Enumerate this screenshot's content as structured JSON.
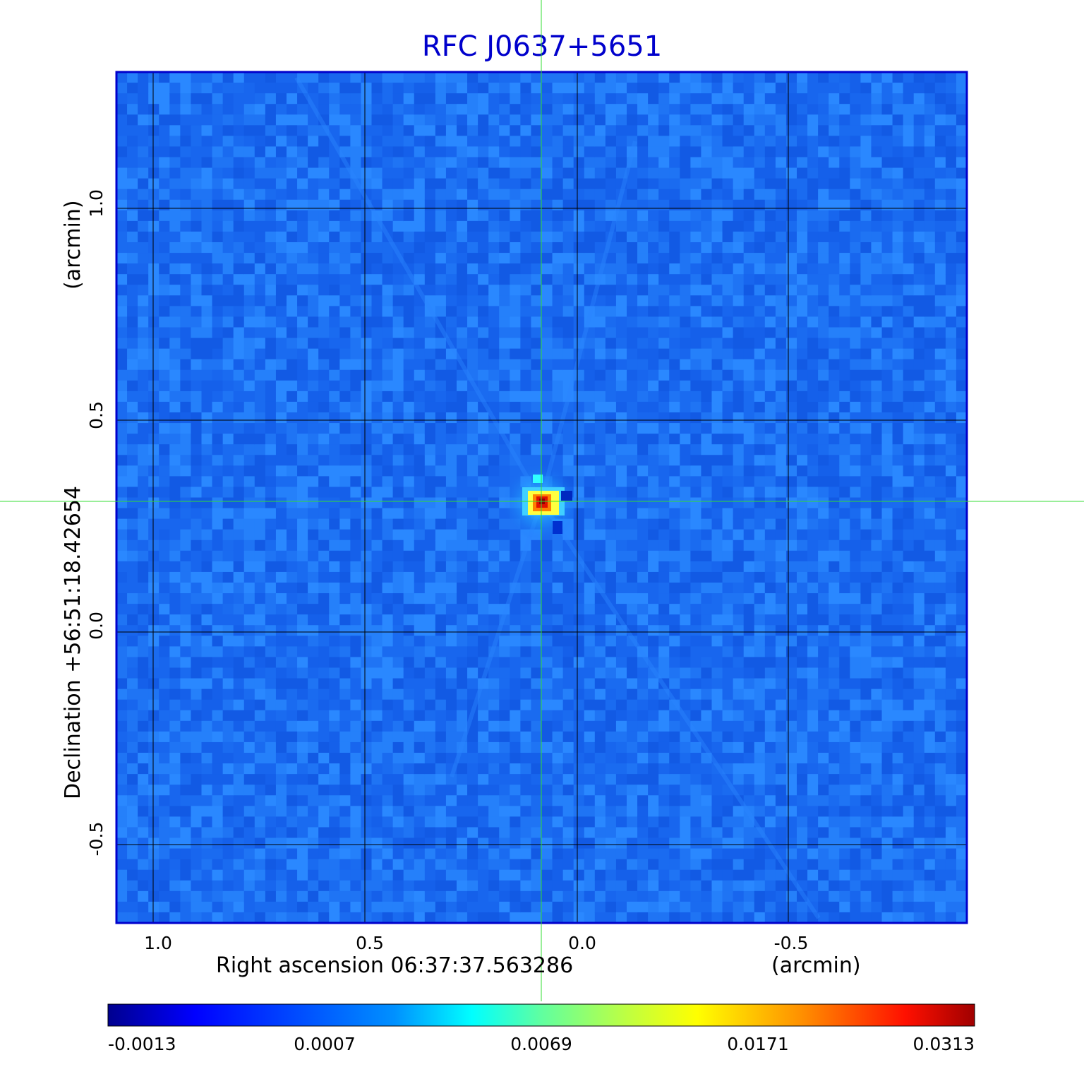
{
  "title": "RFC J0637+5651",
  "axes": {
    "x_label": "Right ascension  06:37:37.563286",
    "x_unit": "(arcmin)",
    "y_label": "Declination  +56:51:18.42654",
    "y_unit": "(arcmin)",
    "x_ticks": [
      "1.0",
      "0.5",
      "0.0",
      "-0.5"
    ],
    "y_ticks": [
      "1.0",
      "0.5",
      "0.0",
      "-0.5"
    ]
  },
  "colorbar": {
    "ticks": [
      "-0.0013",
      "0.0007",
      "0.0069",
      "0.0171",
      "0.0313"
    ]
  },
  "colors": {
    "title": "#0000cc",
    "frame": "#0000cc",
    "crosshair": "#33dd33",
    "grid": "#000000",
    "background_map": "#1a6bf0"
  },
  "chart_data": {
    "type": "heatmap",
    "title": "RFC J0637+5651",
    "xlabel": "Right ascension  06:37:37.563286",
    "ylabel": "Declination  +56:51:18.42654",
    "x_unit": "(arcmin)",
    "y_unit": "(arcmin)",
    "x_ticks": [
      1.0,
      0.5,
      0.0,
      -0.5
    ],
    "y_ticks": [
      1.0,
      0.5,
      0.0,
      -0.5
    ],
    "xlim": [
      1.09,
      -0.92
    ],
    "ylim": [
      -0.69,
      1.32
    ],
    "source_position": [
      0.08,
      0.31
    ],
    "colorscale": "jet",
    "color_range": [
      -0.0013,
      0.0313
    ],
    "colorbar_ticks": [
      -0.0013,
      0.0007,
      0.0069,
      0.0171,
      0.0313
    ],
    "grid": true
  }
}
